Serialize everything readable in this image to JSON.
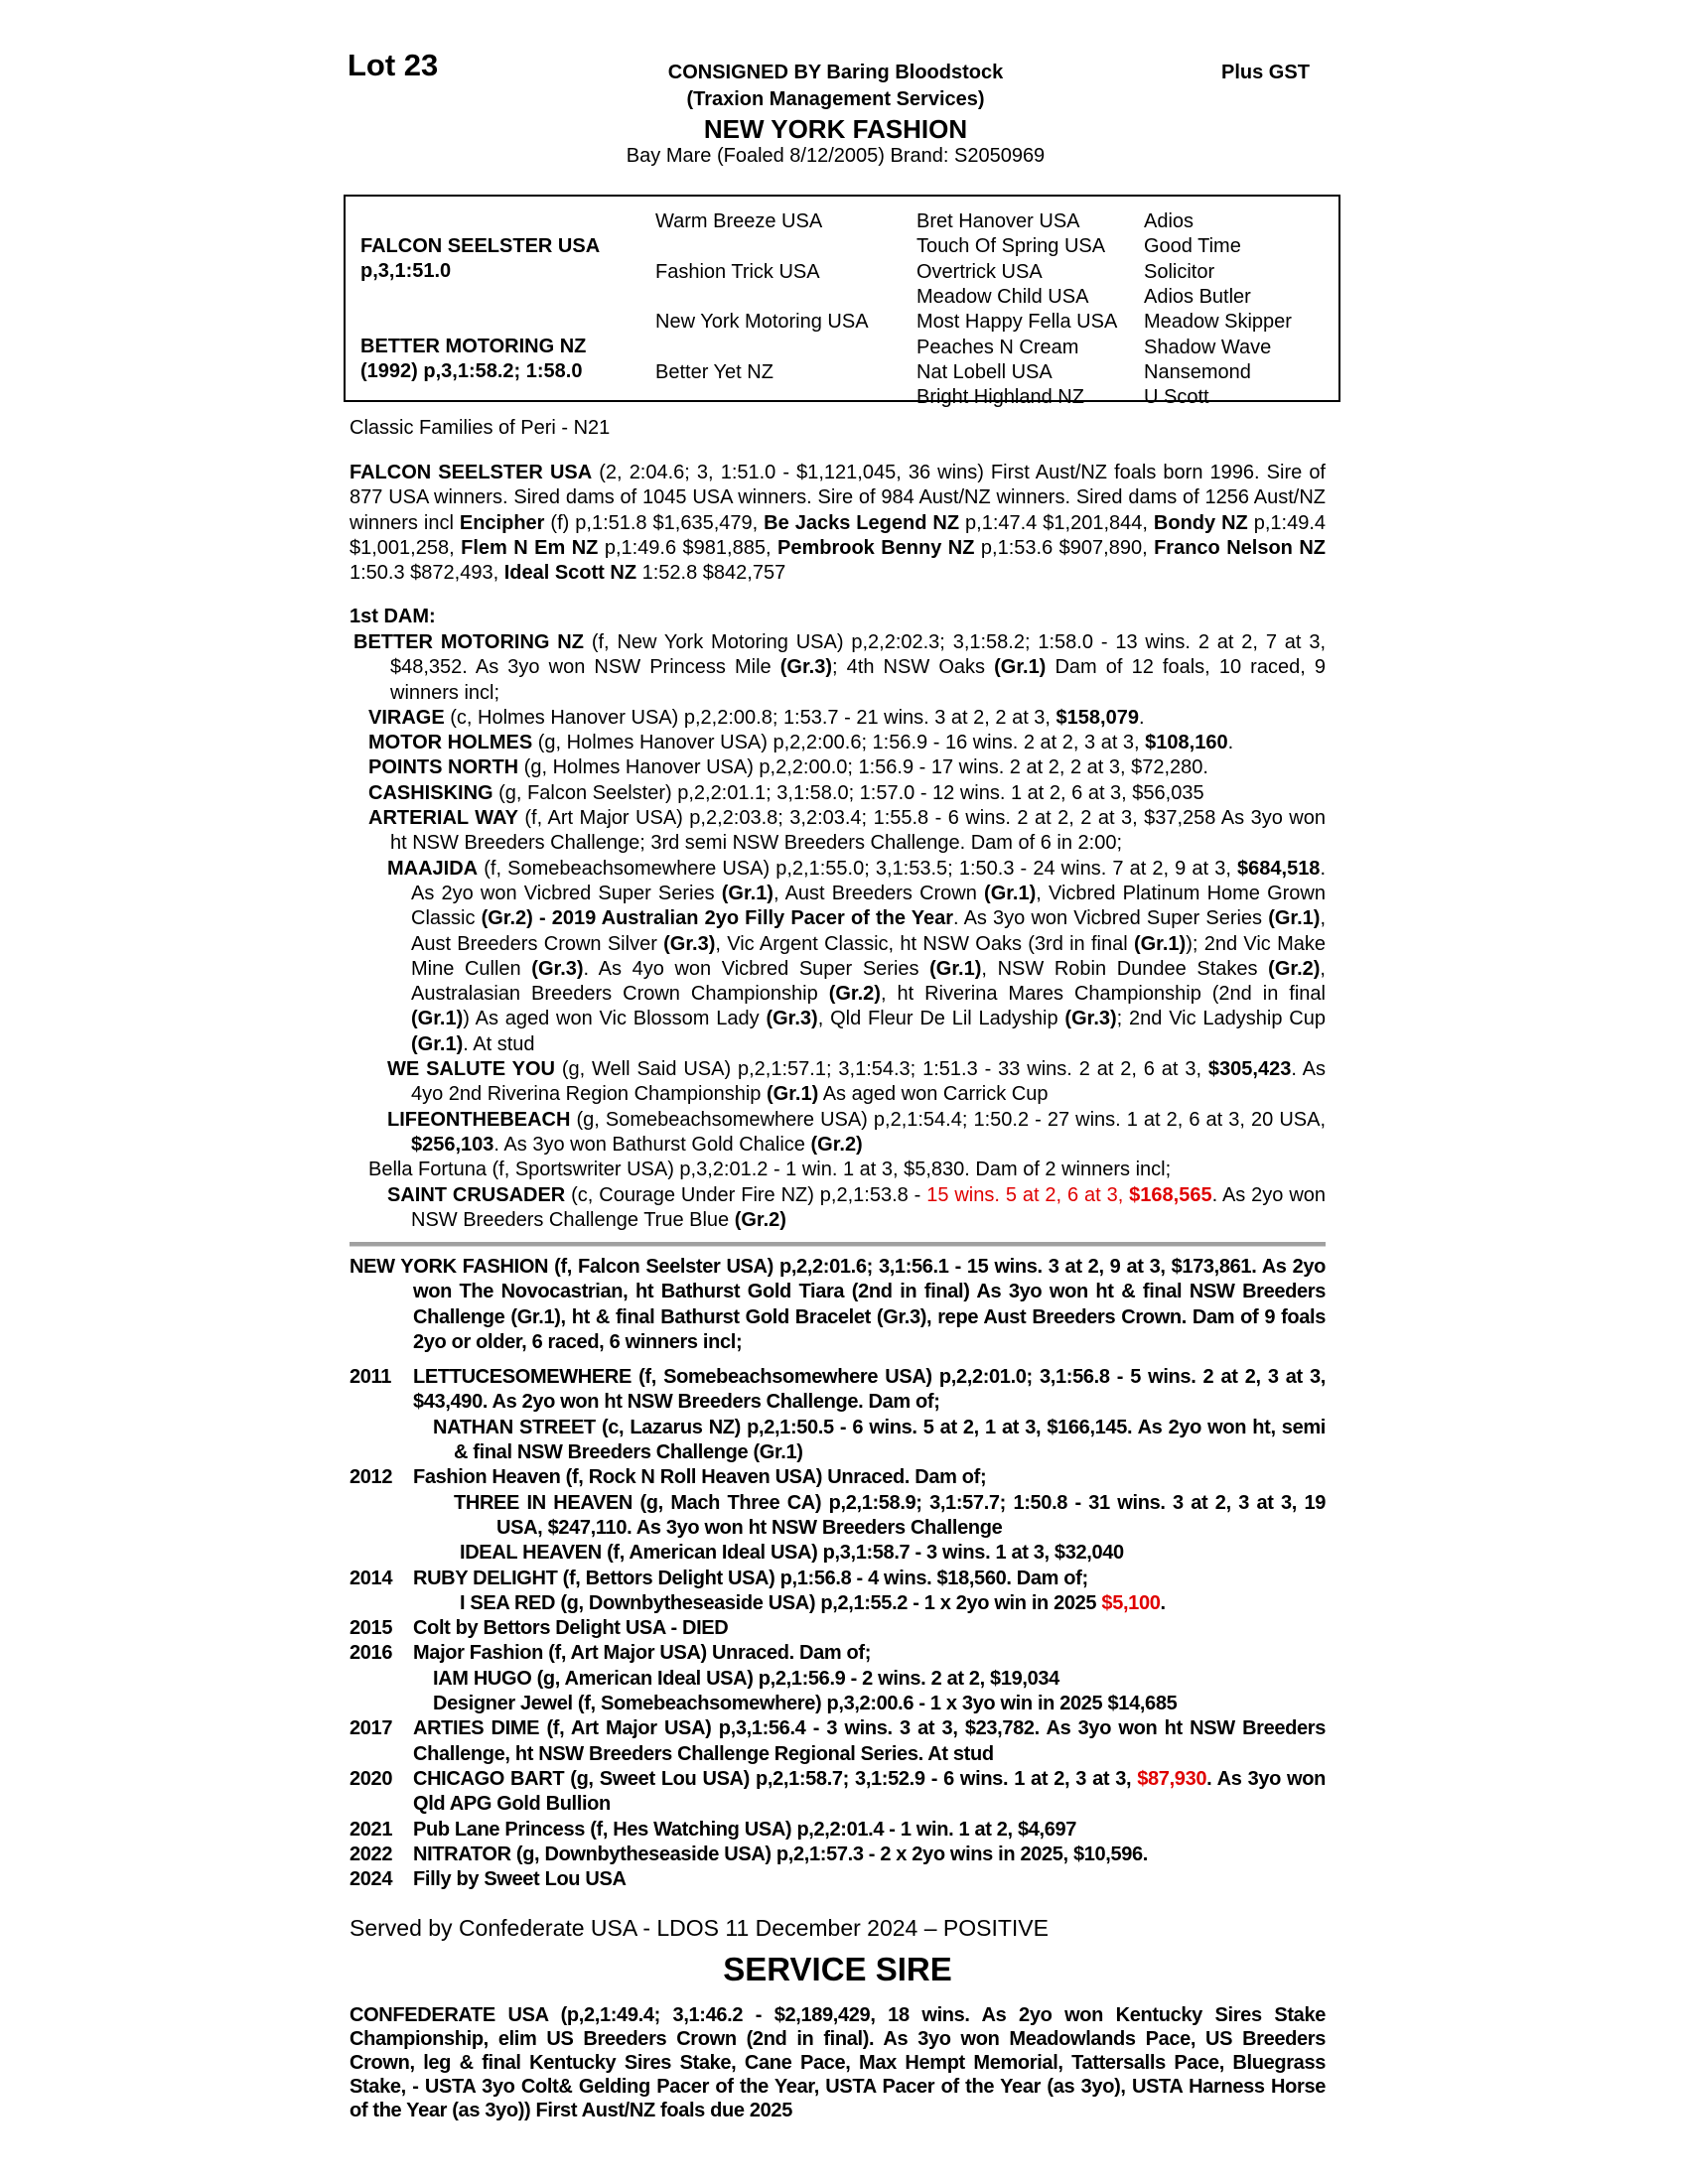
{
  "header": {
    "lot": "Lot 23",
    "consigned": "CONSIGNED BY Baring Bloodstock",
    "consignor_sub": "(Traxion Management Services)",
    "horse_name": "NEW YORK FASHION",
    "description": "Bay Mare (Foaled 8/12/2005) Brand: S2050969",
    "plus_gst": "Plus GST"
  },
  "pedigree": {
    "sire_name": "FALCON SEELSTER USA",
    "sire_record": "p,3,1:51.0",
    "dam_name": "BETTER MOTORING NZ",
    "dam_record": "(1992) p,3,1:58.2; 1:58.0",
    "gen2": [
      "Warm Breeze USA",
      "Fashion Trick USA",
      "New York Motoring USA",
      "Better Yet NZ"
    ],
    "gen3": [
      "Bret Hanover USA",
      "Touch Of Spring USA",
      "Overtrick USA",
      "Meadow Child USA",
      "Most Happy Fella USA",
      "Peaches N Cream",
      "Nat Lobell USA",
      "Bright Highland NZ"
    ],
    "gen4": [
      "Adios",
      "Good Time",
      "Solicitor",
      "Adios Butler",
      "Meadow Skipper",
      "Shadow Wave",
      "Nansemond",
      "U Scott"
    ]
  },
  "family": "Classic Families of Peri - N21",
  "sire_summary": [
    {
      "t": "FALCON SEELSTER USA",
      "s": "b"
    },
    {
      "t": " (2, 2:04.6; 3, 1:51.0 - $1,121,045, 36 wins) First Aust/NZ foals born 1996. Sire of 877 USA winners. Sired dams of 1045 USA winners. Sire of 984 Aust/NZ winners. Sired dams of 1256 Aust/NZ winners incl "
    },
    {
      "t": "Encipher",
      "s": "b"
    },
    {
      "t": " (f) p,1:51.8 $1,635,479, "
    },
    {
      "t": "Be Jacks Legend NZ",
      "s": "b"
    },
    {
      "t": " p,1:47.4 $1,201,844, "
    },
    {
      "t": "Bondy NZ",
      "s": "b"
    },
    {
      "t": " p,1:49.4 $1,001,258, "
    },
    {
      "t": "Flem N Em NZ",
      "s": "b"
    },
    {
      "t": " p,1:49.6 $981,885, "
    },
    {
      "t": "Pembrook Benny NZ",
      "s": "b"
    },
    {
      "t": " p,1:53.6 $907,890, "
    },
    {
      "t": "Franco Nelson NZ",
      "s": "b"
    },
    {
      "t": " 1:50.3 $872,493, "
    },
    {
      "t": "Ideal Scott NZ",
      "s": "b"
    },
    {
      "t": " 1:52.8 $842,757"
    }
  ],
  "first_dam": {
    "heading": "1st DAM:",
    "entries": [
      {
        "level": 0,
        "runs": [
          {
            "t": "BETTER MOTORING NZ",
            "s": "b"
          },
          {
            "t": " (f, New York Motoring USA) p,2,2:02.3; 3,1:58.2; 1:58.0 - 13 wins. 2 at 2, 7 at 3, $48,352. As 3yo won NSW Princess Mile "
          },
          {
            "t": "(Gr.3)",
            "s": "b"
          },
          {
            "t": "; 4th NSW Oaks "
          },
          {
            "t": "(Gr.1)",
            "s": "b"
          },
          {
            "t": " Dam of 12 foals, 10 raced, 9 winners incl;"
          }
        ]
      },
      {
        "level": 1,
        "runs": [
          {
            "t": "VIRAGE",
            "s": "b"
          },
          {
            "t": " (c, Holmes Hanover USA) p,2,2:00.8; 1:53.7 - 21 wins. 3 at 2, 2 at 3, "
          },
          {
            "t": "$158,079",
            "s": "b"
          },
          {
            "t": "."
          }
        ]
      },
      {
        "level": 1,
        "runs": [
          {
            "t": "MOTOR HOLMES",
            "s": "b"
          },
          {
            "t": " (g, Holmes Hanover USA) p,2,2:00.6; 1:56.9 - 16 wins. 2 at 2, 3 at 3, "
          },
          {
            "t": "$108,160",
            "s": "b"
          },
          {
            "t": "."
          }
        ]
      },
      {
        "level": 1,
        "runs": [
          {
            "t": "POINTS NORTH",
            "s": "b"
          },
          {
            "t": " (g, Holmes Hanover USA) p,2,2:00.0; 1:56.9 - 17 wins. 2 at 2, 2 at 3, $72,280."
          }
        ]
      },
      {
        "level": 1,
        "runs": [
          {
            "t": "CASHISKING",
            "s": "b"
          },
          {
            "t": " (g, Falcon Seelster) p,2,2:01.1; 3,1:58.0; 1:57.0 - 12 wins. 1 at 2, 6 at 3, $56,035"
          }
        ]
      },
      {
        "level": 1,
        "runs": [
          {
            "t": "ARTERIAL WAY",
            "s": "b"
          },
          {
            "t": " (f, Art Major USA) p,2,2:03.8; 3,2:03.4; 1:55.8 - 6 wins. 2 at 2, 2 at 3, $37,258 As 3yo won ht NSW Breeders Challenge; 3rd semi NSW Breeders Challenge. Dam of 6 in 2:00;"
          }
        ]
      },
      {
        "level": 2,
        "runs": [
          {
            "t": "MAAJIDA",
            "s": "b"
          },
          {
            "t": " (f, Somebeachsomewhere USA) p,2,1:55.0; 3,1:53.5; 1:50.3 - 24 wins. 7 at 2, 9 at 3, "
          },
          {
            "t": "$684,518",
            "s": "b"
          },
          {
            "t": ". As 2yo won Vicbred Super Series "
          },
          {
            "t": "(Gr.1)",
            "s": "b"
          },
          {
            "t": ", Aust Breeders Crown "
          },
          {
            "t": "(Gr.1)",
            "s": "b"
          },
          {
            "t": ", Vicbred Platinum Home Grown Classic "
          },
          {
            "t": "(Gr.2) - 2019 Australian 2yo Filly Pacer of the Year",
            "s": "b"
          },
          {
            "t": ". As 3yo won Vicbred Super Series "
          },
          {
            "t": "(Gr.1)",
            "s": "b"
          },
          {
            "t": ", Aust Breeders Crown Silver "
          },
          {
            "t": "(Gr.3)",
            "s": "b"
          },
          {
            "t": ", Vic Argent Classic, ht NSW Oaks (3rd in final "
          },
          {
            "t": "(Gr.1)",
            "s": "b"
          },
          {
            "t": "); 2nd Vic Make Mine Cullen "
          },
          {
            "t": "(Gr.3)",
            "s": "b"
          },
          {
            "t": ". As 4yo won Vicbred Super Series "
          },
          {
            "t": "(Gr.1)",
            "s": "b"
          },
          {
            "t": ", NSW Robin Dundee Stakes "
          },
          {
            "t": "(Gr.2)",
            "s": "b"
          },
          {
            "t": ", Australasian Breeders Crown Championship "
          },
          {
            "t": "(Gr.2)",
            "s": "b"
          },
          {
            "t": ", ht Riverina Mares Championship (2nd in final "
          },
          {
            "t": "(Gr.1)",
            "s": "b"
          },
          {
            "t": ") As aged won Vic Blossom Lady "
          },
          {
            "t": "(Gr.3)",
            "s": "b"
          },
          {
            "t": ", Qld Fleur De Lil Ladyship "
          },
          {
            "t": "(Gr.3)",
            "s": "b"
          },
          {
            "t": "; 2nd Vic Ladyship Cup "
          },
          {
            "t": "(Gr.1)",
            "s": "b"
          },
          {
            "t": ". At stud"
          }
        ]
      },
      {
        "level": 2,
        "runs": [
          {
            "t": "WE SALUTE YOU",
            "s": "b"
          },
          {
            "t": " (g, Well Said USA) p,2,1:57.1; 3,1:54.3; 1:51.3 - 33 wins. 2 at 2, 6 at 3, "
          },
          {
            "t": "$305,423",
            "s": "b"
          },
          {
            "t": ". As 4yo 2nd Riverina Region Championship "
          },
          {
            "t": "(Gr.1)",
            "s": "b"
          },
          {
            "t": " As aged won Carrick Cup"
          }
        ]
      },
      {
        "level": 2,
        "runs": [
          {
            "t": "LIFEONTHEBEACH",
            "s": "b"
          },
          {
            "t": " (g, Somebeachsomewhere USA) p,2,1:54.4; 1:50.2 - 27 wins. 1 at 2, 6 at 3, 20 USA, "
          },
          {
            "t": "$256,103",
            "s": "b"
          },
          {
            "t": ". As 3yo won Bathurst Gold Chalice "
          },
          {
            "t": "(Gr.2)",
            "s": "b"
          }
        ]
      },
      {
        "level": 1,
        "runs": [
          {
            "t": "Bella Fortuna (f, Sportswriter USA) p,3,2:01.2 - 1 win. 1 at 3, $5,830. Dam of 2 winners incl;"
          }
        ]
      },
      {
        "level": 2,
        "runs": [
          {
            "t": "SAINT CRUSADER",
            "s": "b"
          },
          {
            "t": " (c, Courage Under Fire NZ) p,2,1:53.8 - "
          },
          {
            "t": "15 wins. 5 at 2, 6 at 3, ",
            "s": "r"
          },
          {
            "t": "$168,565",
            "s": "br"
          },
          {
            "t": ". As 2yo won NSW Breeders Challenge True Blue "
          },
          {
            "t": "(Gr.2)",
            "s": "b"
          }
        ]
      }
    ]
  },
  "subject": [
    {
      "t": "NEW YORK FASHION (f, Falcon Seelster USA) p,2,2:01.6; 3,1:56.1 - 15 wins. 3 at 2, 9 at 3, $173,861. As 2yo won The Novocastrian, ht Bathurst Gold Tiara (2nd in final) As 3yo won ht & final NSW Breeders Challenge (Gr.1), ht & final Bathurst Gold Bracelet (Gr.3), repe Aust Breeders Crown. Dam of 9 foals 2yo or older, 6 raced, 6 winners incl;"
    }
  ],
  "produce": [
    {
      "year": "2011",
      "runs": [
        {
          "t": "LETTUCESOMEWHERE (f, Somebeachsomewhere USA) p,2,2:01.0; 3,1:56.8 - 5 wins. 2 at 2, 3 at 3, $43,490. As 2yo won ht NSW Breeders Challenge. Dam of;"
        }
      ],
      "sub": [
        {
          "level": 1,
          "runs": [
            {
              "t": "NATHAN STREET (c, Lazarus NZ) p,2,1:50.5 - 6 wins. 5 at 2, 1 at 3, $166,145. As 2yo won ht, semi & final NSW Breeders Challenge (Gr.1)"
            }
          ]
        }
      ]
    },
    {
      "year": "2012",
      "runs": [
        {
          "t": "Fashion Heaven (f, Rock N Roll Heaven USA) Unraced. Dam of;"
        }
      ],
      "sub": [
        {
          "level": 2,
          "runs": [
            {
              "t": "THREE IN HEAVEN (g, Mach Three CA) p,2,1:58.9; 3,1:57.7; 1:50.8 - 31 wins. 3 at 2, 3 at 3, 19 USA, $247,110. As 3yo won ht NSW Breeders Challenge"
            }
          ]
        },
        {
          "level": 3,
          "runs": [
            {
              "t": "IDEAL HEAVEN (f, American Ideal USA) p,3,1:58.7 - 3 wins. 1 at 3, $32,040"
            }
          ]
        }
      ]
    },
    {
      "year": "2014",
      "runs": [
        {
          "t": "RUBY DELIGHT (f, Bettors Delight USA) p,1:56.8 - 4 wins. $18,560. Dam of;"
        }
      ],
      "sub": [
        {
          "level": 3,
          "runs": [
            {
              "t": "I SEA RED (g, Downbytheseaside USA) p,2,1:55.2 - 1 x 2yo win in 2025 "
            },
            {
              "t": "$5,100",
              "s": "r"
            },
            {
              "t": "."
            }
          ]
        }
      ]
    },
    {
      "year": "2015",
      "runs": [
        {
          "t": "Colt by Bettors Delight USA - DIED"
        }
      ],
      "sub": []
    },
    {
      "year": "2016",
      "runs": [
        {
          "t": "Major Fashion (f, Art Major USA) Unraced. Dam of;"
        }
      ],
      "sub": [
        {
          "level": 1,
          "runs": [
            {
              "t": "IAM HUGO (g, American Ideal USA) p,2,1:56.9 - 2 wins. 2 at 2, $19,034"
            }
          ]
        },
        {
          "level": 1,
          "runs": [
            {
              "t": "Designer Jewel (f, Somebeachsomewhere) p,3,2:00.6 - 1 x 3yo win in 2025 $14,685"
            }
          ]
        }
      ]
    },
    {
      "year": "2017",
      "runs": [
        {
          "t": "ARTIES DIME (f, Art Major USA) p,3,1:56.4 - 3 wins. 3 at 3, $23,782. As 3yo won ht NSW Breeders Challenge, ht NSW Breeders Challenge Regional Series. At stud"
        }
      ],
      "sub": []
    },
    {
      "year": "2020",
      "runs": [
        {
          "t": "CHICAGO BART (g, Sweet Lou USA) p,2,1:58.7; 3,1:52.9 - 6 wins. 1 at 2, 3 at 3, "
        },
        {
          "t": "$87,930",
          "s": "r"
        },
        {
          "t": ". As 3yo won Qld APG Gold Bullion"
        }
      ],
      "sub": []
    },
    {
      "year": "2021",
      "runs": [
        {
          "t": "Pub Lane Princess (f, Hes Watching USA) p,2,2:01.4 - 1 win. 1 at 2, $4,697"
        }
      ],
      "sub": []
    },
    {
      "year": "2022",
      "runs": [
        {
          "t": "NITRATOR (g, Downbytheseaside USA) p,2,1:57.3 - 2 x 2yo wins in 2025, $10,596."
        }
      ],
      "sub": []
    },
    {
      "year": "2024",
      "runs": [
        {
          "t": "Filly by Sweet Lou USA"
        }
      ],
      "sub": []
    }
  ],
  "served_by": "Served by Confederate USA - LDOS 11 December 2024 – POSITIVE",
  "service_sire": {
    "heading": "SERVICE SIRE",
    "text": "CONFEDERATE USA (p,2,1:49.4; 3,1:46.2 - $2,189,429, 18 wins. As 2yo won Kentucky Sires Stake Championship, elim US Breeders Crown (2nd in final). As 3yo won Meadowlands Pace, US Breeders Crown, leg & final Kentucky Sires Stake, Cane Pace, Max Hempt Memorial, Tattersalls Pace, Bluegrass Stake, - USTA 3yo Colt& Gelding Pacer of the Year, USTA Pacer of the Year (as 3yo), USTA Harness Horse of the Year (as 3yo)) First Aust/NZ foals due 2025"
  },
  "colors": {
    "highlight_red": "#e00000",
    "rule_gray": "#a0a0a0"
  }
}
